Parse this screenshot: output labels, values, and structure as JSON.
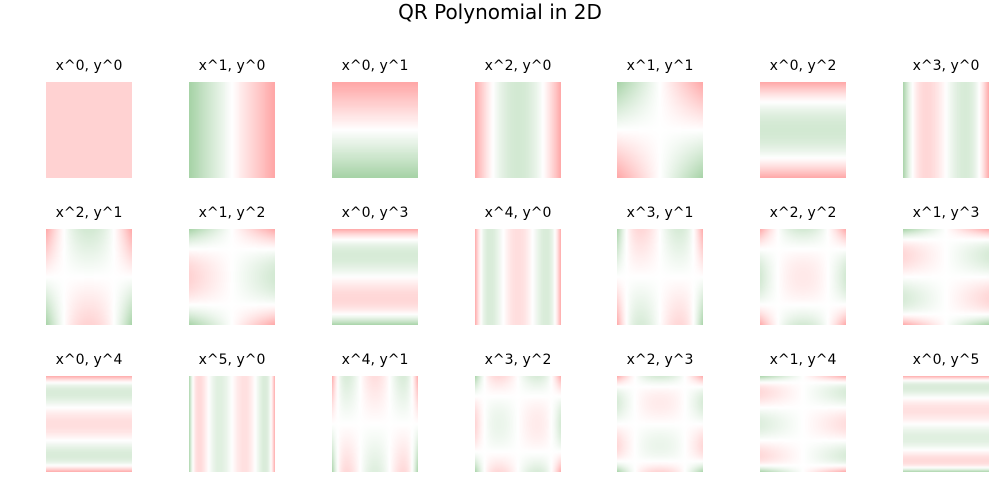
{
  "chart_data": {
    "type": "heatmap",
    "title": "QR Polynomial in 2D",
    "colors": {
      "negative": "#ff0000",
      "zero": "#ffffff",
      "positive": "#008000",
      "background": "#ffffff",
      "text": "#000000"
    },
    "grid": false,
    "axes_visible": false,
    "x_range": [
      -1,
      1
    ],
    "y_range": [
      -1,
      1
    ],
    "color_range": [
      -1,
      1
    ],
    "panel_layout": {
      "rows": 3,
      "columns": 7
    },
    "panels": [
      {
        "title": "x^0, y^0",
        "x_degree": 0,
        "y_degree": 0
      },
      {
        "title": "x^1, y^0",
        "x_degree": 1,
        "y_degree": 0
      },
      {
        "title": "x^0, y^1",
        "x_degree": 0,
        "y_degree": 1
      },
      {
        "title": "x^2, y^0",
        "x_degree": 2,
        "y_degree": 0
      },
      {
        "title": "x^1, y^1",
        "x_degree": 1,
        "y_degree": 1
      },
      {
        "title": "x^0, y^2",
        "x_degree": 0,
        "y_degree": 2
      },
      {
        "title": "x^3, y^0",
        "x_degree": 3,
        "y_degree": 0
      },
      {
        "title": "x^2, y^1",
        "x_degree": 2,
        "y_degree": 1
      },
      {
        "title": "x^1, y^2",
        "x_degree": 1,
        "y_degree": 2
      },
      {
        "title": "x^0, y^3",
        "x_degree": 0,
        "y_degree": 3
      },
      {
        "title": "x^4, y^0",
        "x_degree": 4,
        "y_degree": 0
      },
      {
        "title": "x^3, y^1",
        "x_degree": 3,
        "y_degree": 1
      },
      {
        "title": "x^2, y^2",
        "x_degree": 2,
        "y_degree": 2
      },
      {
        "title": "x^1, y^3",
        "x_degree": 1,
        "y_degree": 3
      },
      {
        "title": "x^0, y^4",
        "x_degree": 0,
        "y_degree": 4
      },
      {
        "title": "x^5, y^0",
        "x_degree": 5,
        "y_degree": 0
      },
      {
        "title": "x^4, y^1",
        "x_degree": 4,
        "y_degree": 1
      },
      {
        "title": "x^3, y^2",
        "x_degree": 3,
        "y_degree": 2
      },
      {
        "title": "x^2, y^3",
        "x_degree": 2,
        "y_degree": 3
      },
      {
        "title": "x^1, y^4",
        "x_degree": 1,
        "y_degree": 4
      },
      {
        "title": "x^0, y^5",
        "x_degree": 0,
        "y_degree": 5
      }
    ]
  }
}
